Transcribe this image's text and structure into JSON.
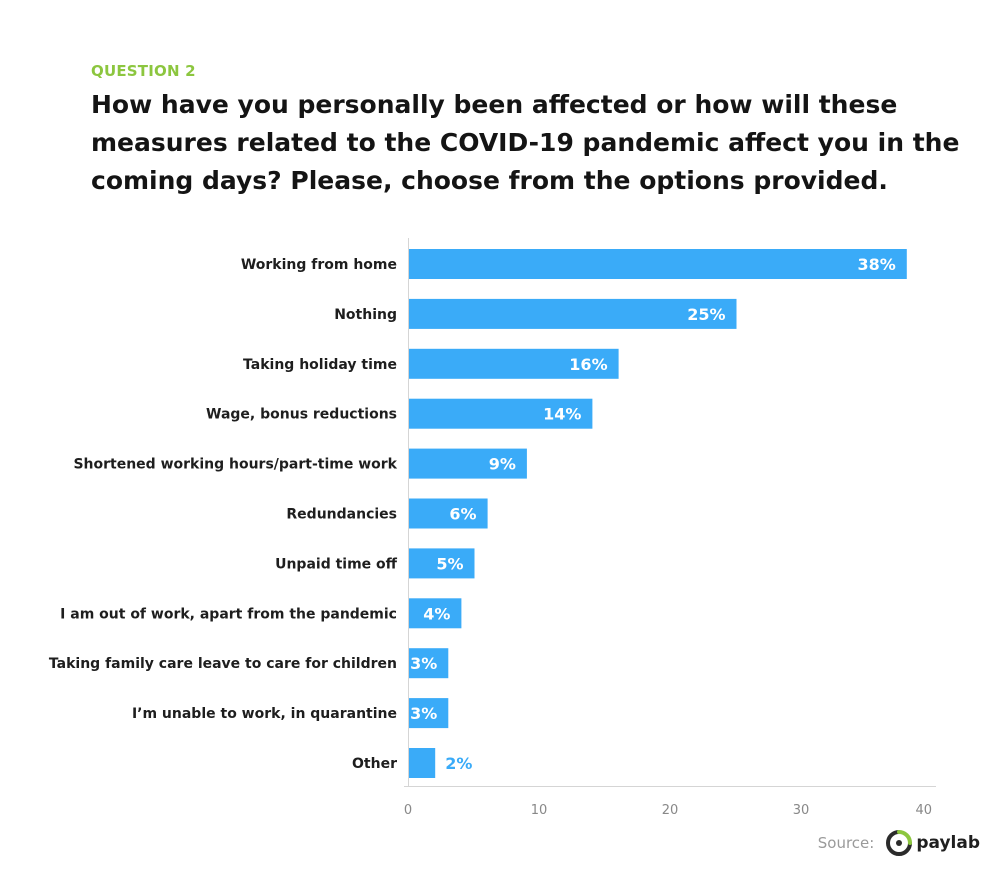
{
  "header": {
    "eyebrow": "QUESTION 2",
    "title_lines": [
      "How have you personally been affected or how will these",
      "measures related to the COVID-19 pandemic affect you in the",
      "coming days? Please, choose from the options provided."
    ]
  },
  "chart_data": {
    "type": "bar",
    "orientation": "horizontal",
    "categories": [
      "Working from home",
      "Nothing",
      "Taking holiday time",
      "Wage, bonus reductions",
      "Shortened working hours/part-time work",
      "Redundancies",
      "Unpaid time off",
      "I am out of work, apart from the pandemic",
      "Taking family care leave to care for children",
      "I’m unable to work, in quarantine",
      "Other"
    ],
    "values": [
      38,
      25,
      16,
      14,
      9,
      6,
      5,
      4,
      3,
      3,
      2
    ],
    "value_labels": [
      "38%",
      "25%",
      "16%",
      "14%",
      "9%",
      "6%",
      "5%",
      "4%",
      "3%",
      "3%",
      "2%"
    ],
    "xlim": [
      0,
      40
    ],
    "xticks": [
      0,
      10,
      20,
      30,
      40
    ],
    "grid": false,
    "bar_color": "#3aabf8",
    "label_color_inside": "#ffffff",
    "label_color_outside": "#3aabf8"
  },
  "footer": {
    "source_label": "Source:",
    "brand_name": "paylab",
    "brand_colors": {
      "ring_dark": "#2b2b2b",
      "ring_green": "#8cc63f"
    }
  }
}
